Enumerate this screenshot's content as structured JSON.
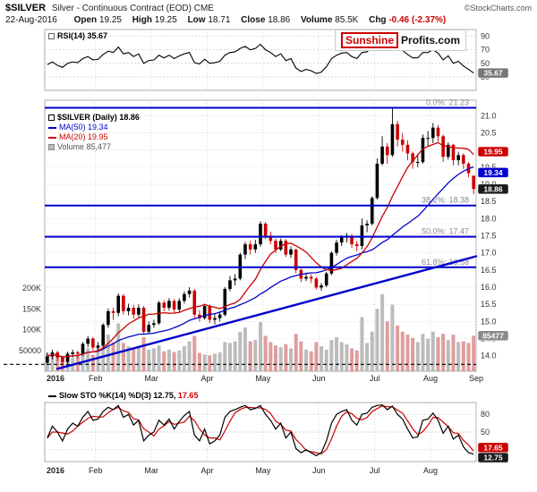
{
  "header": {
    "symbol": "$SILVER",
    "title": "Silver - Continuous Contract (EOD) CME",
    "copyright": "©StockCharts.com",
    "date": "22-Aug-2016",
    "quote": {
      "open_label": "Open",
      "open": "19.25",
      "high_label": "High",
      "high": "19.25",
      "low_label": "Low",
      "low": "18.71",
      "close_label": "Close",
      "close": "18.86",
      "volume_label": "Volume",
      "volume": "85.5K",
      "chg_label": "Chg",
      "chg": "-0.46 (-2.37%)"
    }
  },
  "logo": {
    "word1": "Sunshine",
    "word2": "Profits.com"
  },
  "legends": {
    "rsi": "RSI(14) 35.67",
    "price": "$SILVER (Daily) 18.86",
    "ma50": "MA(50) 19.34",
    "ma20": "MA(20) 19.95",
    "volume": "Volume 85,477",
    "sto_label": "Slow STO %K(14) %D(3)",
    "sto_k": "12.75,",
    "sto_d": "17.65"
  },
  "colors": {
    "up": "#000000",
    "down": "#cc0000",
    "ma20": "#cc0000",
    "ma50": "#0000cc",
    "fib": "#0000cc",
    "trend": "#0000cc",
    "rsi": "#000000",
    "sto_k": "#000000",
    "sto_d": "#cc0000",
    "close_badge": "#1a1a1a",
    "volume_badge": "#8a8a8a",
    "rsi_badge": "#777777"
  },
  "chart_data": [
    {
      "id": "rsi",
      "type": "line",
      "label": "RSI(14)",
      "last": 35.67,
      "ylim": [
        10,
        100
      ],
      "yticks": [
        30,
        50,
        70,
        90
      ],
      "values": [
        48,
        52,
        47,
        44,
        50,
        52,
        51,
        57,
        60,
        55,
        56,
        63,
        68,
        66,
        74,
        64,
        66,
        60,
        64,
        50,
        54,
        55,
        62,
        58,
        62,
        57,
        61,
        64,
        66,
        51,
        49,
        56,
        50,
        51,
        53,
        62,
        66,
        67,
        72,
        75,
        70,
        72,
        78,
        70,
        66,
        60,
        64,
        54,
        57,
        43,
        38,
        41,
        39,
        35,
        37,
        45,
        57,
        62,
        65,
        66,
        60,
        57,
        66,
        67,
        74,
        80,
        82,
        76,
        83,
        72,
        69,
        63,
        58,
        58,
        66,
        66,
        70,
        65,
        55,
        61,
        50,
        53,
        46,
        41,
        35.67
      ]
    },
    {
      "id": "price",
      "type": "candlestick",
      "label": "$SILVER (Daily)",
      "last": 18.86,
      "ylim": [
        13.55,
        21.45
      ],
      "yticks": [
        14.0,
        14.5,
        15.0,
        15.5,
        16.0,
        16.5,
        17.0,
        17.5,
        18.0,
        18.5,
        19.0,
        19.5,
        20.0,
        20.5,
        21.0
      ],
      "months": [
        {
          "label": "2016",
          "i": 0
        },
        {
          "label": "Feb",
          "i": 10
        },
        {
          "label": "Mar",
          "i": 21
        },
        {
          "label": "Apr",
          "i": 32
        },
        {
          "label": "May",
          "i": 43
        },
        {
          "label": "Jun",
          "i": 54
        },
        {
          "label": "Jul",
          "i": 65
        },
        {
          "label": "Aug",
          "i": 76
        },
        {
          "label": "Sep",
          "i": 85
        }
      ],
      "ohlc": [
        [
          13.8,
          14.1,
          13.73,
          13.98
        ],
        [
          13.98,
          14.18,
          13.9,
          14.1
        ],
        [
          14.1,
          14.15,
          13.85,
          13.95
        ],
        [
          13.95,
          14.0,
          13.7,
          13.82
        ],
        [
          13.82,
          14.12,
          13.78,
          14.05
        ],
        [
          14.05,
          14.18,
          13.95,
          14.1
        ],
        [
          14.1,
          14.15,
          13.92,
          14.06
        ],
        [
          14.06,
          14.4,
          14.0,
          14.35
        ],
        [
          14.35,
          14.58,
          14.25,
          14.5
        ],
        [
          14.5,
          14.55,
          14.15,
          14.24
        ],
        [
          14.24,
          14.4,
          14.15,
          14.3
        ],
        [
          14.3,
          14.95,
          14.25,
          14.9
        ],
        [
          14.9,
          15.38,
          14.82,
          15.3
        ],
        [
          15.3,
          15.4,
          15.05,
          15.25
        ],
        [
          15.25,
          15.82,
          15.15,
          15.75
        ],
        [
          15.75,
          15.8,
          15.2,
          15.3
        ],
        [
          15.3,
          15.52,
          15.18,
          15.4
        ],
        [
          15.4,
          15.48,
          15.08,
          15.2
        ],
        [
          15.2,
          15.5,
          15.12,
          15.4
        ],
        [
          15.4,
          15.45,
          14.62,
          14.7
        ],
        [
          14.7,
          15.0,
          14.65,
          14.9
        ],
        [
          14.9,
          15.05,
          14.82,
          14.95
        ],
        [
          14.95,
          15.6,
          14.9,
          15.55
        ],
        [
          15.55,
          15.62,
          15.3,
          15.4
        ],
        [
          15.4,
          15.68,
          15.32,
          15.6
        ],
        [
          15.6,
          15.65,
          15.25,
          15.35
        ],
        [
          15.35,
          15.68,
          15.28,
          15.6
        ],
        [
          15.6,
          15.88,
          15.52,
          15.8
        ],
        [
          15.8,
          16.0,
          15.7,
          15.9
        ],
        [
          15.9,
          15.95,
          15.1,
          15.2
        ],
        [
          15.2,
          15.32,
          15.0,
          15.1
        ],
        [
          15.1,
          15.52,
          15.05,
          15.45
        ],
        [
          15.45,
          15.5,
          14.95,
          15.05
        ],
        [
          15.05,
          15.22,
          14.92,
          15.1
        ],
        [
          15.1,
          15.3,
          15.0,
          15.2
        ],
        [
          15.2,
          16.0,
          15.15,
          15.95
        ],
        [
          15.95,
          16.32,
          15.88,
          16.2
        ],
        [
          16.2,
          16.38,
          16.05,
          16.25
        ],
        [
          16.25,
          17.0,
          16.2,
          16.95
        ],
        [
          16.95,
          17.32,
          16.82,
          17.25
        ],
        [
          17.25,
          17.35,
          16.95,
          17.1
        ],
        [
          17.1,
          17.38,
          17.0,
          17.25
        ],
        [
          17.25,
          17.92,
          17.18,
          17.85
        ],
        [
          17.85,
          17.9,
          17.4,
          17.5
        ],
        [
          17.5,
          17.62,
          17.25,
          17.35
        ],
        [
          17.35,
          17.42,
          17.0,
          17.1
        ],
        [
          17.1,
          17.42,
          17.05,
          17.35
        ],
        [
          17.35,
          17.4,
          16.88,
          16.95
        ],
        [
          16.95,
          17.18,
          16.85,
          17.1
        ],
        [
          17.1,
          17.12,
          16.4,
          16.5
        ],
        [
          16.5,
          16.55,
          16.15,
          16.25
        ],
        [
          16.25,
          16.42,
          16.18,
          16.3
        ],
        [
          16.3,
          16.38,
          16.12,
          16.25
        ],
        [
          16.25,
          16.3,
          15.93,
          15.99
        ],
        [
          15.99,
          16.12,
          15.9,
          16.05
        ],
        [
          16.05,
          16.45,
          16.0,
          16.4
        ],
        [
          16.4,
          17.05,
          16.35,
          17.0
        ],
        [
          17.0,
          17.38,
          16.92,
          17.3
        ],
        [
          17.3,
          17.52,
          17.2,
          17.45
        ],
        [
          17.45,
          17.58,
          17.3,
          17.5
        ],
        [
          17.5,
          17.55,
          17.15,
          17.25
        ],
        [
          17.25,
          17.35,
          17.05,
          17.2
        ],
        [
          17.2,
          18.0,
          17.1,
          17.8
        ],
        [
          17.8,
          17.95,
          17.6,
          17.85
        ],
        [
          17.85,
          18.65,
          17.8,
          18.6
        ],
        [
          18.6,
          19.75,
          18.55,
          19.6
        ],
        [
          19.6,
          20.4,
          19.55,
          20.1
        ],
        [
          20.1,
          20.2,
          19.6,
          19.85
        ],
        [
          19.85,
          21.23,
          19.8,
          20.75
        ],
        [
          20.75,
          20.85,
          20.1,
          20.3
        ],
        [
          20.3,
          20.5,
          19.95,
          20.15
        ],
        [
          20.15,
          20.28,
          19.7,
          19.9
        ],
        [
          19.9,
          19.95,
          19.45,
          19.65
        ],
        [
          19.65,
          19.88,
          19.5,
          19.65
        ],
        [
          19.65,
          20.45,
          19.6,
          20.35
        ],
        [
          20.35,
          20.55,
          20.12,
          20.35
        ],
        [
          20.35,
          20.78,
          20.2,
          20.65
        ],
        [
          20.65,
          20.72,
          20.25,
          20.4
        ],
        [
          20.4,
          20.45,
          19.65,
          19.8
        ],
        [
          19.8,
          20.22,
          19.72,
          20.15
        ],
        [
          20.15,
          20.18,
          19.55,
          19.7
        ],
        [
          19.7,
          19.95,
          19.55,
          19.85
        ],
        [
          19.85,
          19.9,
          19.45,
          19.6
        ],
        [
          19.6,
          19.65,
          19.2,
          19.32
        ],
        [
          19.25,
          19.25,
          18.71,
          18.86
        ]
      ],
      "volume": {
        "last": 85477,
        "yticks": [
          {
            "label": "50000",
            "v": 50
          },
          {
            "label": "100K",
            "v": 100
          },
          {
            "label": "150K",
            "v": 150
          },
          {
            "label": "200K",
            "v": 200
          }
        ],
        "values": [
          42,
          35,
          38,
          30,
          45,
          32,
          36,
          50,
          55,
          40,
          62,
          78,
          88,
          70,
          115,
          68,
          60,
          55,
          58,
          82,
          52,
          55,
          62,
          48,
          52,
          46,
          50,
          60,
          72,
          85,
          44,
          40,
          38,
          42,
          45,
          70,
          68,
          72,
          95,
          105,
          72,
          75,
          118,
          85,
          70,
          62,
          58,
          65,
          55,
          90,
          72,
          52,
          48,
          70,
          60,
          52,
          75,
          82,
          70,
          65,
          55,
          50,
          130,
          68,
          95,
          150,
          185,
          120,
          160,
          110,
          95,
          88,
          80,
          70,
          90,
          78,
          95,
          82,
          90,
          75,
          88,
          70,
          72,
          68,
          85.477
        ]
      },
      "ma": [
        {
          "name": "MA(50)",
          "window": 25,
          "last": 19.34,
          "color": "#0000cc"
        },
        {
          "name": "MA(20)",
          "window": 10,
          "last": 19.95,
          "color": "#cc0000"
        }
      ],
      "fib_levels": [
        {
          "label": "0.0%: 21.23",
          "value": 21.23
        },
        {
          "label": "38.2%: 18.38",
          "value": 18.38
        },
        {
          "label": "50.0%: 17.47",
          "value": 17.47
        },
        {
          "label": "61.8%: 16.58",
          "value": 16.58
        }
      ],
      "trendline": {
        "i1": 2,
        "v1": 13.62,
        "i2": 85,
        "v2": 16.9
      },
      "support_dashed": 13.75
    },
    {
      "id": "sto",
      "type": "line",
      "label": "Slow STO %K(14) %D(3)",
      "k_last": 12.75,
      "d_last": 17.65,
      "ylim": [
        0,
        100
      ],
      "yticks": [
        20,
        50,
        80
      ],
      "k_values": [
        40,
        60,
        50,
        35,
        55,
        65,
        60,
        75,
        85,
        70,
        72,
        85,
        92,
        88,
        95,
        75,
        80,
        62,
        70,
        35,
        45,
        50,
        70,
        62,
        72,
        55,
        68,
        78,
        85,
        45,
        35,
        55,
        30,
        35,
        45,
        75,
        85,
        88,
        92,
        95,
        88,
        90,
        95,
        80,
        70,
        55,
        65,
        40,
        50,
        22,
        15,
        20,
        15,
        10,
        15,
        35,
        65,
        80,
        85,
        88,
        70,
        62,
        80,
        82,
        92,
        95,
        96,
        88,
        94,
        80,
        72,
        55,
        40,
        42,
        70,
        72,
        82,
        70,
        48,
        60,
        38,
        45,
        25,
        15.2,
        12.75
      ]
    }
  ]
}
